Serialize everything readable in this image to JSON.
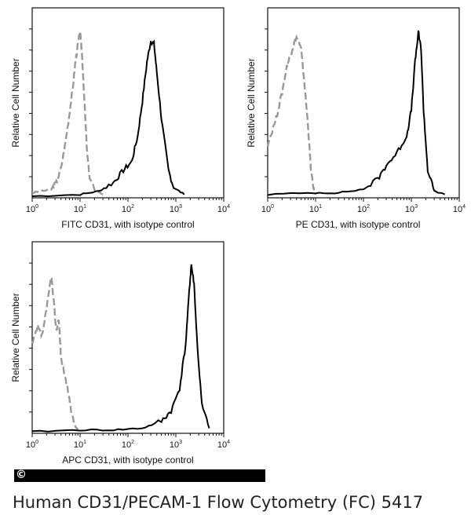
{
  "chart_data": [
    {
      "type": "line",
      "panel": "top-left",
      "xlabel": "FITC CD31, with isotype control",
      "ylabel": "Relative Cell Number",
      "x_scale": "log",
      "xlim": [
        1,
        10000
      ],
      "x_ticks": [
        {
          "base": "10",
          "exp": "0"
        },
        {
          "base": "10",
          "exp": "1"
        },
        {
          "base": "10",
          "exp": "2"
        },
        {
          "base": "10",
          "exp": "3"
        },
        {
          "base": "10",
          "exp": "4"
        }
      ],
      "series": [
        {
          "style": "dashed-gray",
          "points": [
            [
              1.0,
              0.02
            ],
            [
              1.6,
              0.03
            ],
            [
              2.5,
              0.04
            ],
            [
              3.2,
              0.08
            ],
            [
              4.0,
              0.16
            ],
            [
              5.0,
              0.32
            ],
            [
              6.0,
              0.48
            ],
            [
              7.0,
              0.62
            ],
            [
              8.0,
              0.78
            ],
            [
              9.0,
              0.88
            ],
            [
              10.0,
              0.95
            ],
            [
              11.0,
              0.82
            ],
            [
              12.5,
              0.52
            ],
            [
              14.0,
              0.25
            ],
            [
              16.0,
              0.1
            ],
            [
              20.0,
              0.04
            ],
            [
              30.0,
              0.01
            ]
          ]
        },
        {
          "style": "solid-black",
          "points": [
            [
              1.0,
              0.0
            ],
            [
              10.0,
              0.01
            ],
            [
              25.0,
              0.03
            ],
            [
              50.0,
              0.08
            ],
            [
              80.0,
              0.15
            ],
            [
              120.0,
              0.2
            ],
            [
              160.0,
              0.35
            ],
            [
              200.0,
              0.55
            ],
            [
              250.0,
              0.78
            ],
            [
              300.0,
              0.9
            ],
            [
              350.0,
              0.88
            ],
            [
              400.0,
              0.72
            ],
            [
              500.0,
              0.45
            ],
            [
              700.0,
              0.15
            ],
            [
              900.0,
              0.05
            ],
            [
              1500.0,
              0.01
            ]
          ]
        }
      ]
    },
    {
      "type": "line",
      "panel": "top-right",
      "xlabel": "PE CD31, with isotype control",
      "ylabel": "Relative Cell Number",
      "x_scale": "log",
      "xlim": [
        1,
        10000
      ],
      "x_ticks": [
        {
          "base": "10",
          "exp": "0"
        },
        {
          "base": "10",
          "exp": "1"
        },
        {
          "base": "10",
          "exp": "2"
        },
        {
          "base": "10",
          "exp": "3"
        },
        {
          "base": "10",
          "exp": "4"
        }
      ],
      "series": [
        {
          "style": "dashed-gray",
          "points": [
            [
              1.0,
              0.3
            ],
            [
              1.5,
              0.45
            ],
            [
              2.0,
              0.6
            ],
            [
              2.5,
              0.75
            ],
            [
              3.0,
              0.82
            ],
            [
              3.5,
              0.88
            ],
            [
              4.0,
              0.92
            ],
            [
              5.0,
              0.85
            ],
            [
              6.0,
              0.62
            ],
            [
              7.0,
              0.4
            ],
            [
              8.0,
              0.15
            ],
            [
              9.0,
              0.05
            ],
            [
              10.0,
              0.01
            ]
          ]
        },
        {
          "style": "solid-black",
          "points": [
            [
              1.0,
              0.01
            ],
            [
              10.0,
              0.02
            ],
            [
              30.0,
              0.02
            ],
            [
              100.0,
              0.04
            ],
            [
              200.0,
              0.1
            ],
            [
              300.0,
              0.18
            ],
            [
              500.0,
              0.25
            ],
            [
              800.0,
              0.35
            ],
            [
              1000.0,
              0.5
            ],
            [
              1200.0,
              0.78
            ],
            [
              1400.0,
              0.95
            ],
            [
              1600.0,
              0.85
            ],
            [
              1800.0,
              0.5
            ],
            [
              2200.0,
              0.15
            ],
            [
              3000.0,
              0.03
            ],
            [
              5000.0,
              0.01
            ]
          ]
        }
      ]
    },
    {
      "type": "line",
      "panel": "bottom-left",
      "xlabel": "APC CD31, with isotype control",
      "ylabel": "Relative Cell Number",
      "x_scale": "log",
      "xlim": [
        1,
        10000
      ],
      "x_ticks": [
        {
          "base": "10",
          "exp": "0"
        },
        {
          "base": "10",
          "exp": "1"
        },
        {
          "base": "10",
          "exp": "2"
        },
        {
          "base": "10",
          "exp": "3"
        },
        {
          "base": "10",
          "exp": "4"
        }
      ],
      "series": [
        {
          "style": "dashed-gray",
          "points": [
            [
              1.0,
              0.5
            ],
            [
              1.3,
              0.6
            ],
            [
              1.6,
              0.55
            ],
            [
              2.0,
              0.7
            ],
            [
              2.5,
              0.9
            ],
            [
              2.8,
              0.75
            ],
            [
              3.2,
              0.58
            ],
            [
              3.6,
              0.65
            ],
            [
              4.0,
              0.42
            ],
            [
              5.0,
              0.3
            ],
            [
              6.0,
              0.18
            ],
            [
              7.0,
              0.08
            ],
            [
              8.0,
              0.03
            ],
            [
              9.0,
              0.01
            ]
          ]
        },
        {
          "style": "solid-black",
          "points": [
            [
              1.0,
              0.0
            ],
            [
              10.0,
              0.01
            ],
            [
              50.0,
              0.01
            ],
            [
              200.0,
              0.02
            ],
            [
              500.0,
              0.06
            ],
            [
              800.0,
              0.12
            ],
            [
              1200.0,
              0.25
            ],
            [
              1600.0,
              0.5
            ],
            [
              1900.0,
              0.8
            ],
            [
              2100.0,
              0.96
            ],
            [
              2400.0,
              0.85
            ],
            [
              2800.0,
              0.5
            ],
            [
              3500.0,
              0.15
            ],
            [
              5000.0,
              0.02
            ]
          ]
        }
      ]
    }
  ],
  "watermark": "©",
  "caption": "Human CD31/PECAM-1 Flow Cytometry (FC) 5417"
}
